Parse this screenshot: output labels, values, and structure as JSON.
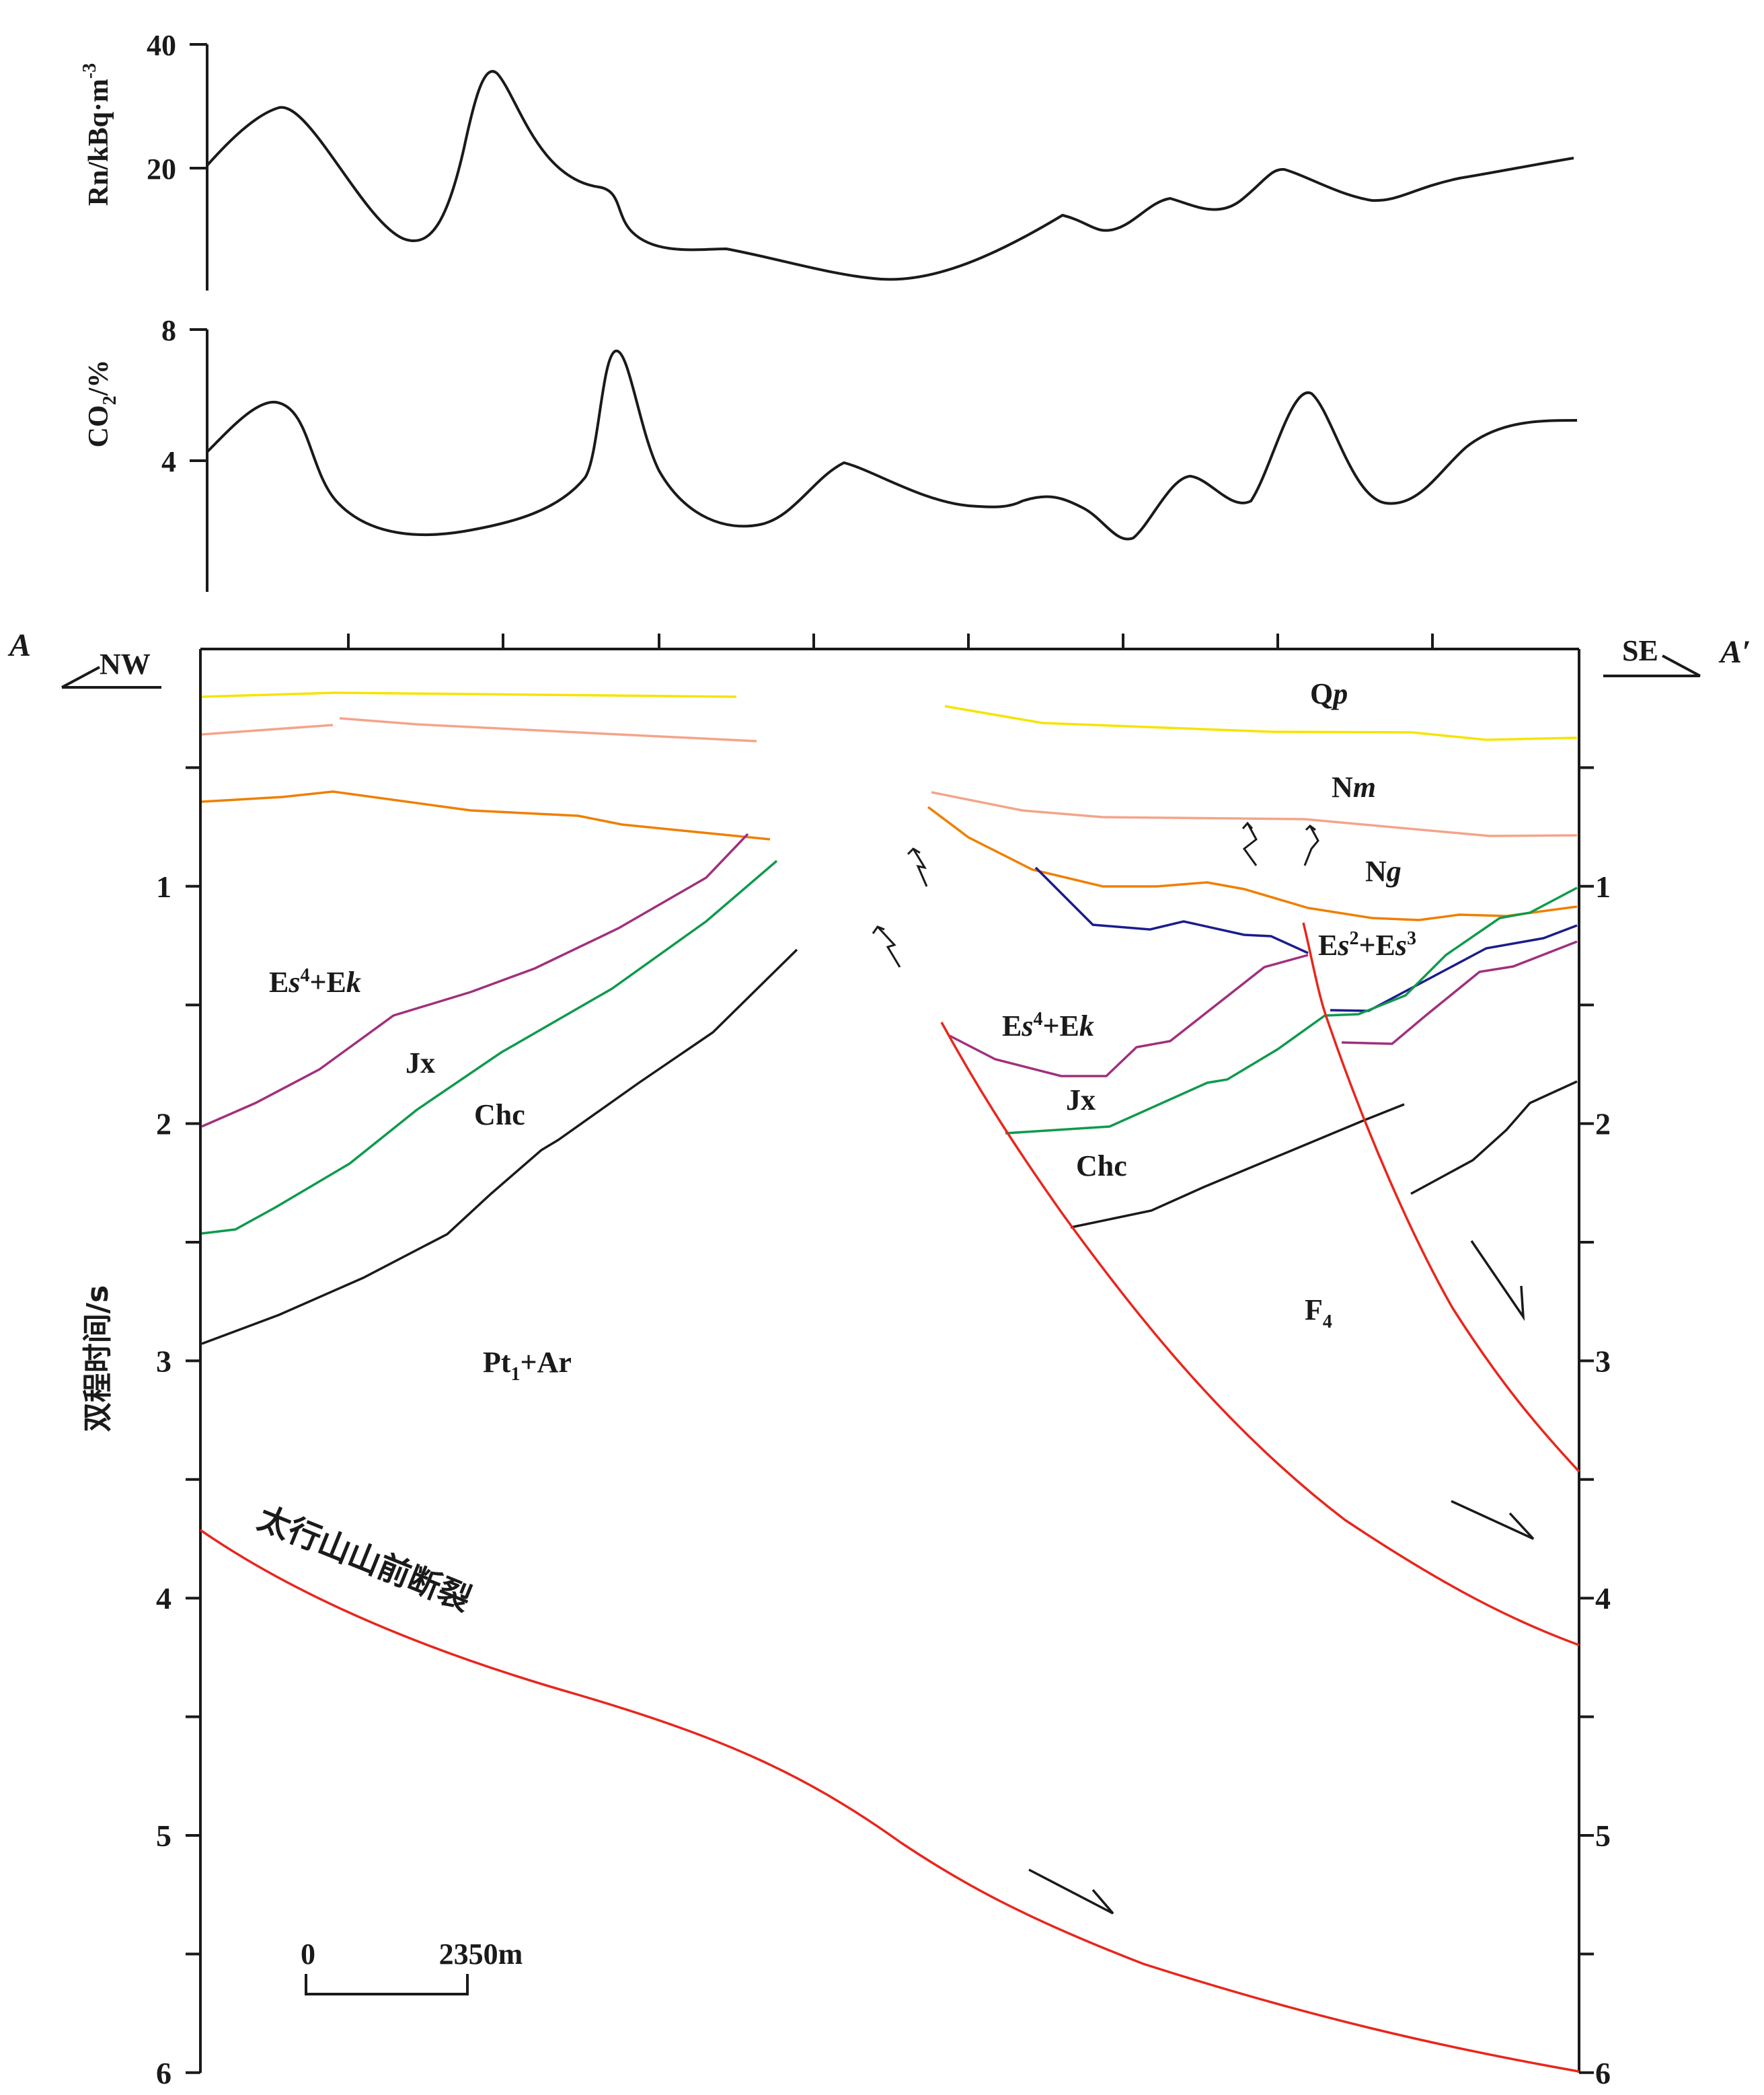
{
  "rn_panel": {
    "ylabel": "Rn/kBq·m",
    "ylabel_sup": "-3",
    "ticks": [
      {
        "label": "40",
        "value": 40
      },
      {
        "label": "20",
        "value": 20
      }
    ]
  },
  "co2_panel": {
    "ylabel_main": "CO",
    "ylabel_sub": "2",
    "ylabel_rest": "/%",
    "ticks": [
      {
        "label": "8",
        "value": 8
      },
      {
        "label": "4",
        "value": 4
      }
    ]
  },
  "section": {
    "left_end": "A",
    "right_end": "A′",
    "left_dir": "NW",
    "right_dir": "SE",
    "ylabel": "双程时间/s",
    "time_ticks": [
      "1",
      "2",
      "3",
      "4",
      "5",
      "6"
    ],
    "scale_zero": "0",
    "scale_length": "2350m",
    "fault_main": "太行山山前断裂",
    "fault_f4": "F",
    "fault_f4_sub": "4",
    "units": {
      "qp": {
        "main": "Q",
        "it": "p"
      },
      "nm": {
        "main": "N",
        "it": "m"
      },
      "ng": {
        "main": "N",
        "it": "g"
      },
      "es23": {
        "a": "E",
        "b": "s",
        "c": "2",
        "d": "+E",
        "e": "s",
        "f": "3"
      },
      "es4_left": {
        "a": "E",
        "b": "s",
        "c": "4",
        "d": "+E",
        "e": "k"
      },
      "es4_right": {
        "a": "E",
        "b": "s",
        "c": "4",
        "d": "+E",
        "e": "k"
      },
      "jx_left": "Jx",
      "jx_right": "Jx",
      "chc_left": "Chc",
      "chc_right": "Chc",
      "pt": {
        "a": "Pt",
        "b": "1",
        "c": "+Ar"
      }
    }
  },
  "colors": {
    "qp_top": "#f5e400",
    "nm_top": "#f4a48a",
    "ng_top": "#ef7f00",
    "es_blue": "#1c1c8c",
    "es4_magenta": "#a0307c",
    "jx_green": "#0f9a4c",
    "chc_black": "#1a1a1a",
    "fault_red": "#e8261c"
  }
}
